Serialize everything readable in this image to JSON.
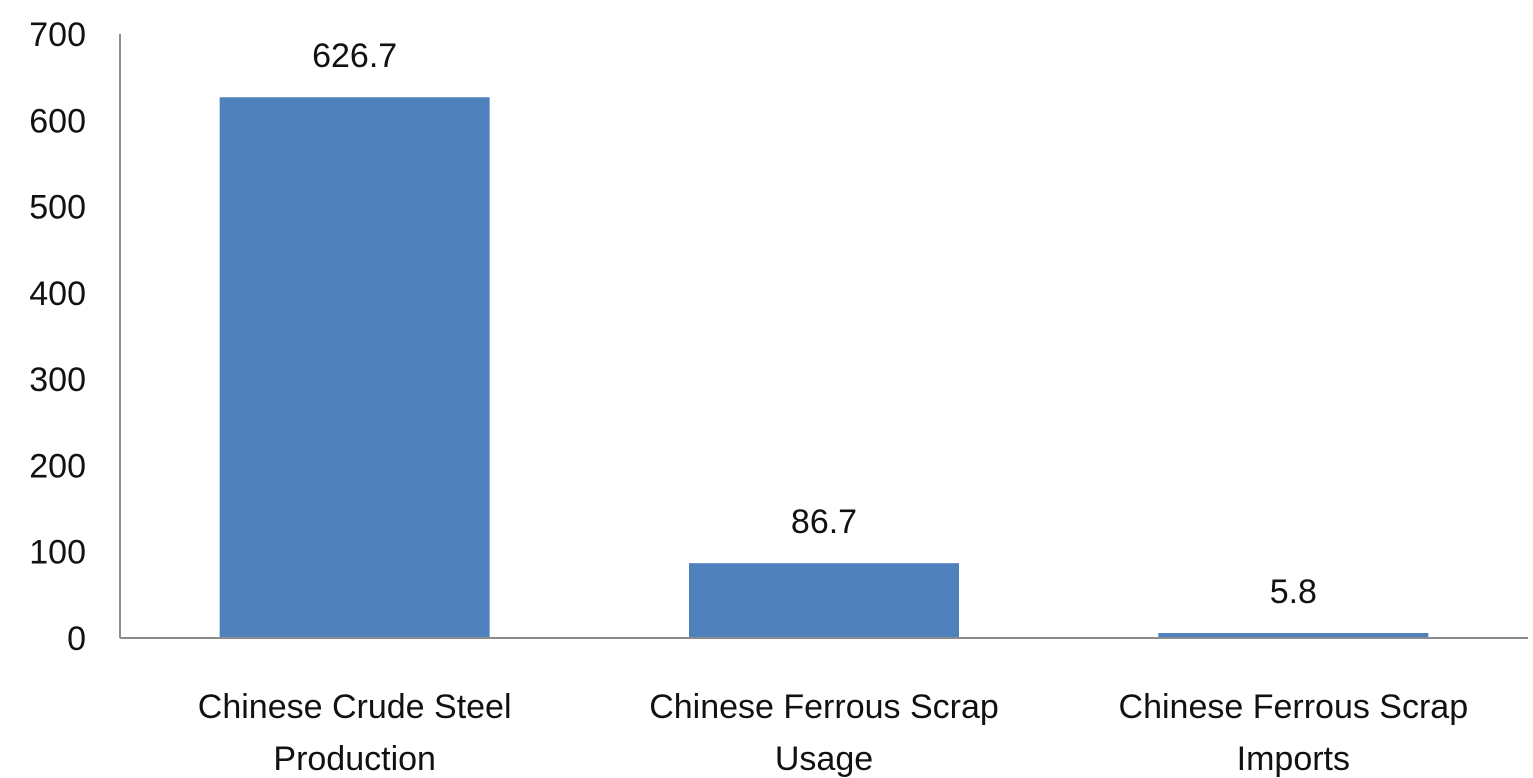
{
  "chart_data": {
    "type": "bar",
    "categories": [
      [
        "Chinese Crude Steel",
        "Production"
      ],
      [
        "Chinese Ferrous Scrap",
        "Usage"
      ],
      [
        "Chinese Ferrous Scrap",
        "Imports"
      ]
    ],
    "values": [
      626.7,
      86.7,
      5.8
    ],
    "data_labels": [
      "626.7",
      "86.7",
      "5.8"
    ],
    "yticks": [
      "0",
      "100",
      "200",
      "300",
      "400",
      "500",
      "600",
      "700"
    ],
    "ylim": [
      0,
      700
    ],
    "grid": false,
    "legend": "none",
    "colors": {
      "bar": "#4f81bd",
      "axis": "#8c8c8c",
      "text": "#111111"
    }
  }
}
